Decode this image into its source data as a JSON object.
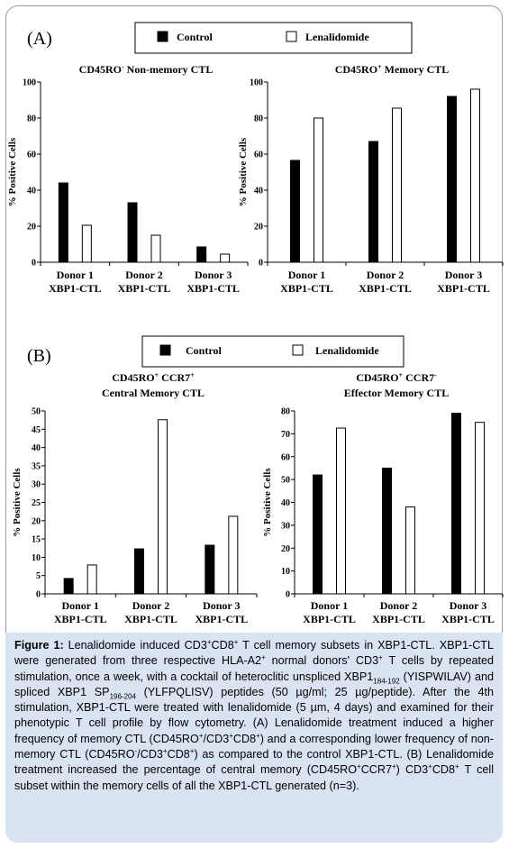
{
  "panels": [
    {
      "letter": "(A)",
      "legend": {
        "control": "Control",
        "lenalidomide": "Lenalidomide"
      },
      "colors": {
        "control": "#000000",
        "lenalidomide": "#ffffff"
      }
    },
    {
      "letter": "(B)",
      "legend": {
        "control": "Control",
        "lenalidomide": "Lenalidomide"
      },
      "colors": {
        "control": "#000000",
        "lenalidomide": "#ffffff"
      }
    }
  ],
  "chart_data": [
    {
      "type": "bar",
      "panel": "A",
      "title_parts": [
        "CD45RO",
        "-",
        "  Non-memory CTL"
      ],
      "title_line2": "",
      "ylabel": "% Positive Cells",
      "ylim": [
        0,
        100
      ],
      "yticks": [
        0,
        20,
        40,
        60,
        80,
        100
      ],
      "categories": [
        [
          "Donor 1",
          "XBP1-CTL"
        ],
        [
          "Donor 2",
          "XBP1-CTL"
        ],
        [
          "Donor 3",
          "XBP1-CTL"
        ]
      ],
      "series": [
        {
          "name": "Control",
          "values": [
            44,
            33,
            8.5
          ]
        },
        {
          "name": "Lenalidomide",
          "values": [
            20.5,
            15,
            4.5
          ]
        }
      ]
    },
    {
      "type": "bar",
      "panel": "A",
      "title_parts": [
        "CD45RO",
        "+",
        "  Memory CTL"
      ],
      "title_line2": "",
      "ylabel": "% Positive Cells",
      "ylim": [
        0,
        100
      ],
      "yticks": [
        0,
        20,
        40,
        60,
        80,
        100
      ],
      "categories": [
        [
          "Donor 1",
          "XBP1-CTL"
        ],
        [
          "Donor 2",
          "XBP1-CTL"
        ],
        [
          "Donor 3",
          "XBP1-CTL"
        ]
      ],
      "series": [
        {
          "name": "Control",
          "values": [
            56.5,
            67,
            92
          ]
        },
        {
          "name": "Lenalidomide",
          "values": [
            80,
            85.5,
            96
          ]
        }
      ]
    },
    {
      "type": "bar",
      "panel": "B",
      "title_parts": [
        "CD45RO",
        "+",
        " CCR7",
        "+"
      ],
      "title_line2": "Central Memory CTL",
      "ylabel": "% Positive Cells",
      "ylim": [
        0,
        50
      ],
      "yticks": [
        0,
        5,
        10,
        15,
        20,
        25,
        30,
        35,
        40,
        45,
        50
      ],
      "categories": [
        [
          "Donor 1",
          "XBP1-CTL"
        ],
        [
          "Donor 2",
          "XBP1-CTL"
        ],
        [
          "Donor 3",
          "XBP1-CTL"
        ]
      ],
      "series": [
        {
          "name": "Control",
          "values": [
            4.2,
            12.3,
            13.3
          ]
        },
        {
          "name": "Lenalidomide",
          "values": [
            7.9,
            47.6,
            21.2
          ]
        }
      ]
    },
    {
      "type": "bar",
      "panel": "B",
      "title_parts": [
        "CD45RO",
        "+",
        " CCR7",
        "-"
      ],
      "title_line2": "Effector Memory CTL",
      "ylabel": "% Positive Cells",
      "ylim": [
        0,
        80
      ],
      "yticks": [
        0,
        10,
        20,
        30,
        40,
        50,
        60,
        70,
        80
      ],
      "categories": [
        [
          "Donor 1",
          "XBP1-CTL"
        ],
        [
          "Donor 2",
          "XBP1-CTL"
        ],
        [
          "Donor 3",
          "XBP1-CTL"
        ]
      ],
      "series": [
        {
          "name": "Control",
          "values": [
            52,
            55,
            79
          ]
        },
        {
          "name": "Lenalidomide",
          "values": [
            72.5,
            38,
            75
          ]
        }
      ]
    }
  ],
  "caption": {
    "figure_label": "Figure 1:",
    "s1": " Lenalidomide induced CD3",
    "s1sup": "+",
    "s2": "CD8",
    "s2sup": "+",
    "s3": " T cell memory subsets in XBP1-CTL. XBP1-CTL were generated from three respective HLA-A2",
    "s3sup": "+",
    "s4": " normal donors' CD3",
    "s4sup": "+",
    "s5": " T cells by repeated stimulation, once a week, with a cocktail of heteroclitic unspliced XBP1",
    "s5sub": "184-192",
    "s6": " (YISPWILAV) and spliced XBP1 SP",
    "s6sub": "196-204",
    "s7": " (YLFPQLISV) peptides (50 µg/ml; 25 µg/peptide).  After the 4th stimulation, XBP1-CTL were treated with lenalidomide (5 µm, 4 days) and examined for their phenotypic T cell profile by flow cytometry.  (A) Lenalidomide treatment induced a higher frequency of memory CTL (CD45RO",
    "s7sup": "+",
    "s8": "/CD3",
    "s8sup": "+",
    "s9": "CD8",
    "s9sup": "+",
    "s10": ") and a corresponding lower frequency of non-memory CTL (CD45RO",
    "s10sup": "-",
    "s11": "/CD3",
    "s11sup": "+",
    "s12": "CD8",
    "s12sup": "+",
    "s13": ") as compared to the control XBP1-CTL. (B) Lenalidomide treatment increased the percentage of central memory (CD45RO",
    "s13sup": "+",
    "s14": "CCR7",
    "s14sup": "+",
    "s15": ") CD3",
    "s15sup": "+",
    "s16": "CD8",
    "s16sup": "+",
    "s17": " T cell subset within the memory cells of all the XBP1-CTL generated (n=3)."
  }
}
